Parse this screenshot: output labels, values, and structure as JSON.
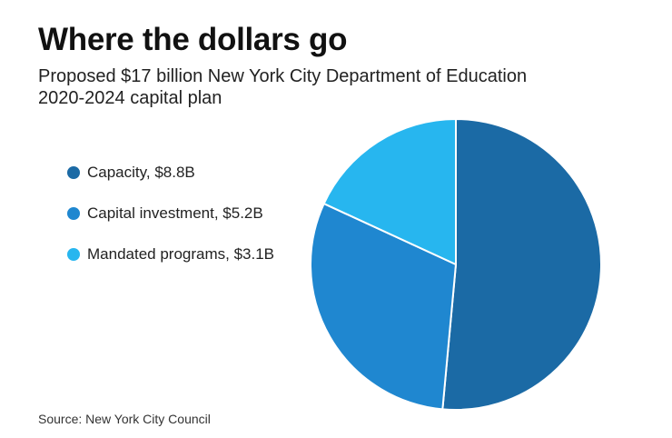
{
  "title": "Where the dollars go",
  "subtitle": "Proposed $17 billion New York City Department of Education 2020-2024 capital plan",
  "source": "Source: New York City Council",
  "chart_data": {
    "type": "pie",
    "slices": [
      {
        "label": "Capacity, $8.8B",
        "value": 8.8,
        "color": "#1b6aa5"
      },
      {
        "label": "Capital investment, $5.2B",
        "value": 5.2,
        "color": "#1f87d0"
      },
      {
        "label": "Mandated programs, $3.1B",
        "value": 3.1,
        "color": "#27b6ef"
      }
    ],
    "legend_position": "left"
  }
}
